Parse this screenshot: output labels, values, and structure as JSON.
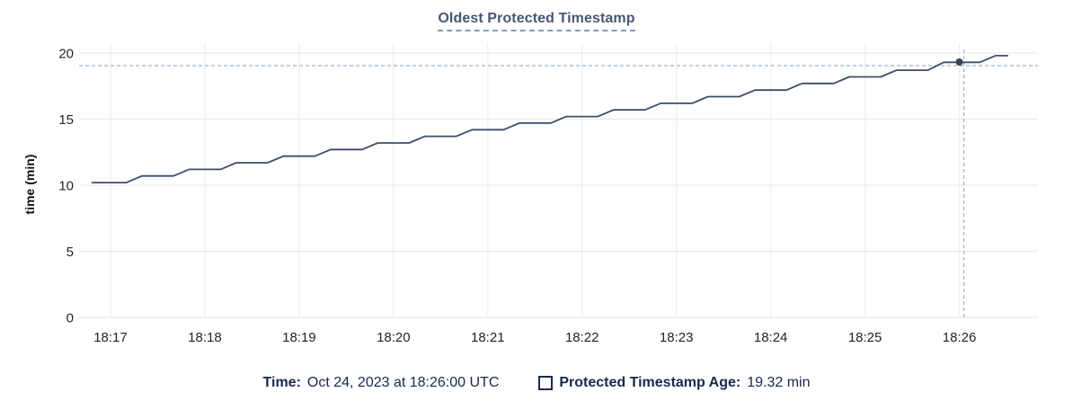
{
  "colors": {
    "line": "#3e4d68",
    "marker": "#35435c",
    "grid": "#ededed",
    "grid_vertical": "#f1f1f1",
    "crosshair": "#9db3c8",
    "tick_text": "#242424",
    "title_text": "#475872",
    "legend_text": "#17294d"
  },
  "chart_data": {
    "type": "line",
    "title": "Oldest Protected Timestamp",
    "xlabel": "",
    "ylabel": "time (min)",
    "ylim": [
      0,
      20
    ],
    "y_ticks": [
      0,
      5,
      10,
      15,
      20
    ],
    "x_domain_seconds": [
      -20,
      590
    ],
    "x_ticks": [
      {
        "t": 0,
        "label": "18:17"
      },
      {
        "t": 60,
        "label": "18:18"
      },
      {
        "t": 120,
        "label": "18:19"
      },
      {
        "t": 180,
        "label": "18:20"
      },
      {
        "t": 240,
        "label": "18:21"
      },
      {
        "t": 300,
        "label": "18:22"
      },
      {
        "t": 360,
        "label": "18:23"
      },
      {
        "t": 420,
        "label": "18:24"
      },
      {
        "t": 480,
        "label": "18:25"
      },
      {
        "t": 540,
        "label": "18:26"
      }
    ],
    "grid": true,
    "legend_position": "bottom",
    "series": [
      {
        "name": "Protected Timestamp Age",
        "points": [
          [
            -12,
            10.2
          ],
          [
            10,
            10.2
          ],
          [
            20,
            10.7
          ],
          [
            40,
            10.7
          ],
          [
            50,
            11.2
          ],
          [
            70,
            11.2
          ],
          [
            80,
            11.7
          ],
          [
            100,
            11.7
          ],
          [
            110,
            12.2
          ],
          [
            130,
            12.2
          ],
          [
            140,
            12.7
          ],
          [
            160,
            12.7
          ],
          [
            170,
            13.2
          ],
          [
            190,
            13.2
          ],
          [
            200,
            13.7
          ],
          [
            220,
            13.7
          ],
          [
            230,
            14.2
          ],
          [
            250,
            14.2
          ],
          [
            260,
            14.7
          ],
          [
            280,
            14.7
          ],
          [
            290,
            15.2
          ],
          [
            310,
            15.2
          ],
          [
            320,
            15.7
          ],
          [
            340,
            15.7
          ],
          [
            350,
            16.2
          ],
          [
            370,
            16.2
          ],
          [
            380,
            16.7
          ],
          [
            400,
            16.7
          ],
          [
            410,
            17.2
          ],
          [
            430,
            17.2
          ],
          [
            440,
            17.7
          ],
          [
            460,
            17.7
          ],
          [
            470,
            18.2
          ],
          [
            490,
            18.2
          ],
          [
            500,
            18.7
          ],
          [
            520,
            18.7
          ],
          [
            530,
            19.3
          ],
          [
            553,
            19.3
          ],
          [
            563,
            19.8
          ],
          [
            571,
            19.8
          ]
        ]
      }
    ],
    "marker": {
      "t": 540,
      "value": 19.32
    },
    "tooltip": {
      "time_label": "Time:",
      "time_value": "Oct 24, 2023 at 18:26:00 UTC",
      "age_label": "Protected Timestamp Age:",
      "age_value": "19.32 min"
    }
  }
}
